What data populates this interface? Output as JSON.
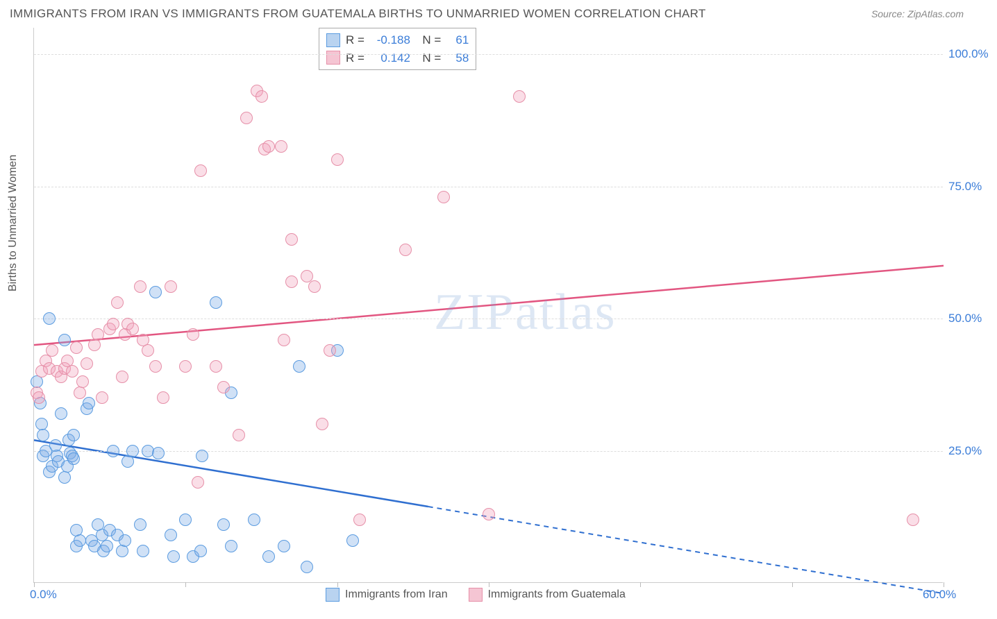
{
  "title": "IMMIGRANTS FROM IRAN VS IMMIGRANTS FROM GUATEMALA BIRTHS TO UNMARRIED WOMEN CORRELATION CHART",
  "source": "Source: ZipAtlas.com",
  "ylabel": "Births to Unmarried Women",
  "watermark": "ZIPatlas",
  "chart": {
    "type": "scatter",
    "xlim": [
      0,
      60
    ],
    "ylim": [
      0,
      105
    ],
    "xticks": [
      0,
      10,
      20,
      30,
      40,
      50,
      60
    ],
    "xtick_labels": {
      "0": "0.0%",
      "60": "60.0%"
    },
    "yticks": [
      25,
      50,
      75,
      100
    ],
    "ytick_labels": {
      "25": "25.0%",
      "50": "50.0%",
      "75": "75.0%",
      "100": "100.0%"
    },
    "background_color": "#ffffff",
    "grid_color": "#dddddd",
    "axis_color": "#cccccc",
    "tick_label_color": "#3b7dd8",
    "marker_radius": 9,
    "series": [
      {
        "name": "Immigrants from Iran",
        "label": "Immigrants from Iran",
        "fill": "rgba(120,170,230,0.35)",
        "stroke": "#5a9be0",
        "swatch_fill": "#b9d3f0",
        "swatch_border": "#5a9be0",
        "R": "-0.188",
        "N": "61",
        "trend": {
          "x1": 0,
          "y1": 27,
          "x2": 60,
          "y2": -2,
          "color": "#2f6fd0",
          "solid_until_x": 26
        },
        "points": [
          [
            0.2,
            38
          ],
          [
            0.4,
            34
          ],
          [
            0.5,
            30
          ],
          [
            0.6,
            24
          ],
          [
            0.6,
            28
          ],
          [
            0.8,
            25
          ],
          [
            1.0,
            50
          ],
          [
            1.0,
            21
          ],
          [
            1.2,
            22
          ],
          [
            1.4,
            26
          ],
          [
            1.5,
            24
          ],
          [
            1.6,
            23
          ],
          [
            1.8,
            32
          ],
          [
            2.0,
            46
          ],
          [
            2.0,
            20
          ],
          [
            2.2,
            22
          ],
          [
            2.3,
            27
          ],
          [
            2.4,
            24.5
          ],
          [
            2.5,
            24
          ],
          [
            2.6,
            28
          ],
          [
            2.6,
            23.5
          ],
          [
            2.8,
            10
          ],
          [
            2.8,
            7
          ],
          [
            3.0,
            8
          ],
          [
            3.5,
            33
          ],
          [
            3.6,
            34
          ],
          [
            3.8,
            8
          ],
          [
            4.0,
            7
          ],
          [
            4.2,
            11
          ],
          [
            4.5,
            9
          ],
          [
            4.6,
            6
          ],
          [
            4.8,
            7
          ],
          [
            5.0,
            10
          ],
          [
            5.2,
            25
          ],
          [
            5.5,
            9
          ],
          [
            5.8,
            6
          ],
          [
            6.0,
            8
          ],
          [
            6.2,
            23
          ],
          [
            6.5,
            25
          ],
          [
            7.0,
            11
          ],
          [
            7.2,
            6
          ],
          [
            7.5,
            25
          ],
          [
            8.0,
            55
          ],
          [
            8.2,
            24.5
          ],
          [
            9.0,
            9
          ],
          [
            9.2,
            5
          ],
          [
            10.0,
            12
          ],
          [
            10.5,
            5
          ],
          [
            11.0,
            6
          ],
          [
            11.1,
            24
          ],
          [
            12.0,
            53
          ],
          [
            12.5,
            11
          ],
          [
            13.0,
            36
          ],
          [
            13.0,
            7
          ],
          [
            14.5,
            12
          ],
          [
            15.5,
            5
          ],
          [
            16.5,
            7
          ],
          [
            17.5,
            41
          ],
          [
            18.0,
            3
          ],
          [
            20.0,
            44
          ],
          [
            21.0,
            8
          ]
        ]
      },
      {
        "name": "Immigrants from Guatemala",
        "label": "Immigrants from Guatemala",
        "fill": "rgba(240,160,185,0.35)",
        "stroke": "#e68fa8",
        "swatch_fill": "#f5c5d3",
        "swatch_border": "#e68fa8",
        "R": "0.142",
        "N": "58",
        "trend": {
          "x1": 0,
          "y1": 45,
          "x2": 60,
          "y2": 60,
          "color": "#e25681",
          "solid_until_x": 60
        },
        "points": [
          [
            0.2,
            36
          ],
          [
            0.3,
            35
          ],
          [
            0.5,
            40
          ],
          [
            0.8,
            42
          ],
          [
            1.0,
            40.5
          ],
          [
            1.2,
            44
          ],
          [
            1.5,
            40
          ],
          [
            1.8,
            39
          ],
          [
            2.0,
            40.5
          ],
          [
            2.2,
            42
          ],
          [
            2.5,
            40
          ],
          [
            2.8,
            44.5
          ],
          [
            3.0,
            36
          ],
          [
            3.2,
            38
          ],
          [
            3.5,
            41.5
          ],
          [
            4.0,
            45
          ],
          [
            4.2,
            47
          ],
          [
            4.5,
            35
          ],
          [
            5.0,
            48
          ],
          [
            5.2,
            49
          ],
          [
            5.5,
            53
          ],
          [
            5.8,
            39
          ],
          [
            6.0,
            47
          ],
          [
            6.2,
            49
          ],
          [
            6.5,
            48
          ],
          [
            7.0,
            56
          ],
          [
            7.2,
            46
          ],
          [
            7.5,
            44
          ],
          [
            8.0,
            41
          ],
          [
            8.5,
            35
          ],
          [
            9.0,
            56
          ],
          [
            10.0,
            41
          ],
          [
            10.5,
            47
          ],
          [
            10.8,
            19
          ],
          [
            11.0,
            78
          ],
          [
            12.0,
            41
          ],
          [
            12.5,
            37
          ],
          [
            13.5,
            28
          ],
          [
            14.0,
            88
          ],
          [
            14.7,
            93
          ],
          [
            15.0,
            92
          ],
          [
            15.2,
            82
          ],
          [
            15.5,
            82.5
          ],
          [
            16.3,
            82.5
          ],
          [
            16.5,
            46
          ],
          [
            17.0,
            57
          ],
          [
            17.0,
            65
          ],
          [
            18.0,
            58
          ],
          [
            18.5,
            56
          ],
          [
            19.0,
            30
          ],
          [
            19.5,
            44
          ],
          [
            20.0,
            80
          ],
          [
            21.5,
            12
          ],
          [
            24.5,
            63
          ],
          [
            27.0,
            73
          ],
          [
            30.0,
            13
          ],
          [
            32.0,
            92
          ],
          [
            58.0,
            12
          ]
        ]
      }
    ]
  },
  "stats_box": {
    "rows": [
      {
        "series_idx": 0
      },
      {
        "series_idx": 1
      }
    ]
  }
}
